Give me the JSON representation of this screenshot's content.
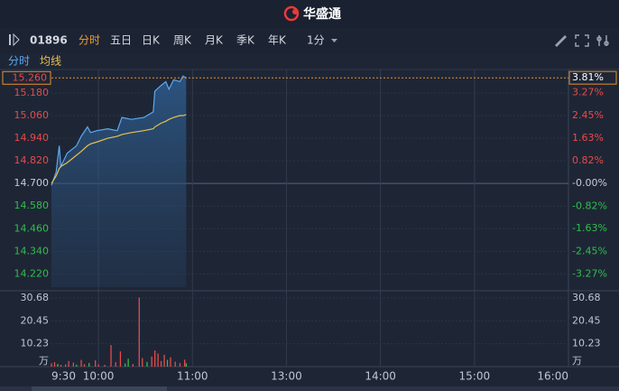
{
  "header": {
    "brand": "华盛通"
  },
  "toolbar": {
    "code": "01896",
    "tabs": [
      "分时",
      "五日",
      "日K",
      "周K",
      "月K",
      "季K",
      "年K"
    ],
    "active_tab": 0,
    "interval": "1分"
  },
  "chart_data": {
    "type": "line",
    "x": [
      0,
      3,
      5,
      6,
      10,
      16,
      19,
      23,
      25,
      29,
      36,
      42,
      45,
      51,
      59,
      65,
      66,
      70,
      73,
      75,
      78,
      82,
      84,
      86
    ],
    "xlim": [
      0,
      330
    ],
    "xticks": [
      {
        "value": 0,
        "label": "9:30"
      },
      {
        "value": 30,
        "label": "10:00"
      },
      {
        "value": 90,
        "label": "11:00"
      },
      {
        "value": 150,
        "label": "13:00"
      },
      {
        "value": 210,
        "label": "14:00"
      },
      {
        "value": 270,
        "label": "15:00"
      },
      {
        "value": 330,
        "label": "16:00"
      }
    ],
    "series": [
      {
        "name": "分时",
        "color": "#5fa8f0",
        "values": [
          14.69,
          14.76,
          14.9,
          14.79,
          14.86,
          14.9,
          14.95,
          15.0,
          14.97,
          14.98,
          14.99,
          14.98,
          15.05,
          15.04,
          15.05,
          15.08,
          15.19,
          15.22,
          15.24,
          15.2,
          15.25,
          15.24,
          15.27,
          15.26
        ]
      },
      {
        "name": "均线",
        "color": "#e8c050",
        "values": [
          14.7,
          14.74,
          14.78,
          14.79,
          14.81,
          14.85,
          14.87,
          14.9,
          14.91,
          14.92,
          14.94,
          14.95,
          14.96,
          14.97,
          14.98,
          14.99,
          15.0,
          15.02,
          15.03,
          15.04,
          15.05,
          15.06,
          15.06,
          15.065
        ]
      }
    ],
    "ylim": [
      14.15,
      15.29
    ],
    "yticks": [
      {
        "value": 14.22,
        "label": "14.220"
      },
      {
        "value": 14.34,
        "label": "14.340"
      },
      {
        "value": 14.46,
        "label": "14.460"
      },
      {
        "value": 14.58,
        "label": "14.580"
      },
      {
        "value": 14.7,
        "label": "14.700"
      },
      {
        "value": 14.82,
        "label": "14.820"
      },
      {
        "value": 14.94,
        "label": "14.940"
      },
      {
        "value": 15.06,
        "label": "15.060"
      },
      {
        "value": 15.18,
        "label": "15.180"
      }
    ],
    "y2lim": [
      -3.74,
      4.01
    ],
    "y2ticks": [
      {
        "value": -3.27,
        "label": "-3.27%"
      },
      {
        "value": -2.45,
        "label": "-2.45%"
      },
      {
        "value": -1.63,
        "label": "-1.63%"
      },
      {
        "value": -0.82,
        "label": "-0.82%"
      },
      {
        "value": 0,
        "label": "-0.00%"
      },
      {
        "value": 0.82,
        "label": "0.82%"
      },
      {
        "value": 1.63,
        "label": "1.63%"
      },
      {
        "value": 2.45,
        "label": "2.45%"
      },
      {
        "value": 3.27,
        "label": "3.27%"
      }
    ],
    "base_price": 14.7,
    "last_price": {
      "value": 15.26,
      "label": "15.260"
    },
    "last_change": {
      "value": 3.81,
      "label": "3.81%"
    },
    "up_color": "#e84a4a",
    "down_color": "#2fbf4a",
    "flat_color": "#c8ccd4",
    "grid": true,
    "volume": {
      "x": [
        0,
        2,
        4,
        6,
        9,
        11,
        14,
        16,
        19,
        21,
        24,
        28,
        30,
        34,
        38,
        41,
        44,
        47,
        49,
        52,
        56,
        58,
        61,
        64,
        66,
        68,
        70,
        72,
        74,
        76,
        79,
        82,
        85,
        86
      ],
      "values": [
        1.5,
        2.0,
        1.2,
        0.8,
        1.0,
        2.5,
        1.8,
        0.9,
        3.0,
        1.1,
        1.6,
        2.8,
        1.0,
        0.8,
        9.6,
        2.0,
        6.8,
        1.4,
        3.5,
        1.2,
        30.9,
        3.8,
        2.1,
        4.5,
        7.2,
        5.9,
        2.5,
        5.3,
        3.0,
        4.2,
        2.2,
        1.6,
        3.1,
        1.5
      ],
      "colors": [
        "#e84a4a",
        "#e84a4a",
        "#2fbf4a",
        "#e84a4a",
        "#e84a4a",
        "#e84a4a",
        "#e84a4a",
        "#2fbf4a",
        "#e84a4a",
        "#e84a4a",
        "#2fbf4a",
        "#e84a4a",
        "#e84a4a",
        "#e84a4a",
        "#e84a4a",
        "#e84a4a",
        "#e84a4a",
        "#2fbf4a",
        "#2fbf4a",
        "#e84a4a",
        "#e84a4a",
        "#e84a4a",
        "#2fbf4a",
        "#e84a4a",
        "#e84a4a",
        "#e84a4a",
        "#e84a4a",
        "#e84a4a",
        "#2fbf4a",
        "#e84a4a",
        "#e84a4a",
        "#e84a4a",
        "#e84a4a",
        "#2fbf4a"
      ],
      "ylim": [
        0,
        33.9
      ],
      "yticks": [
        10.23,
        20.45,
        30.68
      ],
      "unit": "万"
    }
  }
}
